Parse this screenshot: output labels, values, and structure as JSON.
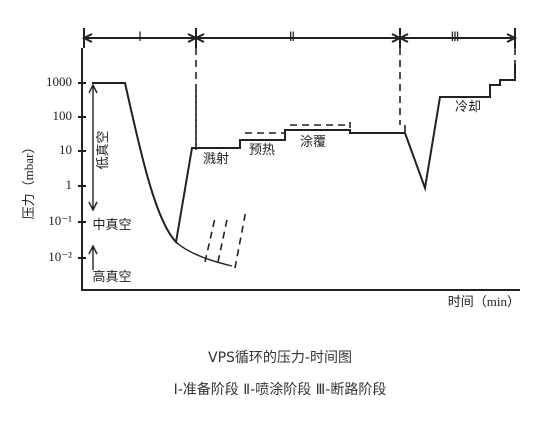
{
  "phases": [
    "Ⅰ",
    "Ⅱ",
    "Ⅲ"
  ],
  "y_axis": {
    "label": "压力（mbar）",
    "ticks": [
      "1000",
      "100",
      "10",
      "1",
      "10⁻¹",
      "10⁻²"
    ]
  },
  "regions": [
    "低真空",
    "中真空",
    "高真空"
  ],
  "x_axis": {
    "label": "时间（min）"
  },
  "annotations": [
    "溅射",
    "预热",
    "涂覆",
    "冷却"
  ],
  "caption": {
    "title": "VPS循环的压力-时间图",
    "legend": "Ⅰ-准备阶段 Ⅱ-喷涂阶段 Ⅲ-断路阶段"
  }
}
